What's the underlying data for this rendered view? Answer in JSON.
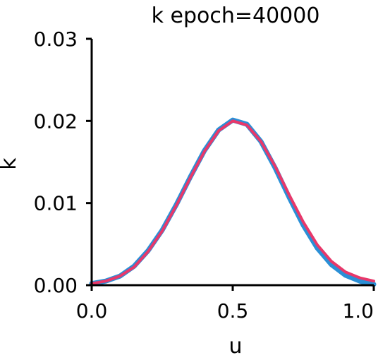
{
  "chart_data": {
    "type": "line",
    "title": "k epoch=40000",
    "xlabel": "u",
    "ylabel": "k",
    "xlim": [
      0.0,
      1.0
    ],
    "ylim": [
      0.0,
      0.03
    ],
    "xticks": [
      "0.0",
      "0.5",
      "1.0"
    ],
    "yticks": [
      "0.00",
      "0.01",
      "0.02",
      "0.03"
    ],
    "grid": false,
    "legend": "none",
    "series": [
      {
        "color": "#2a8fd6",
        "x": [
          0.0,
          0.05,
          0.1,
          0.15,
          0.2,
          0.25,
          0.3,
          0.35,
          0.4,
          0.45,
          0.5,
          0.55,
          0.6,
          0.65,
          0.7,
          0.75,
          0.8,
          0.85,
          0.9,
          0.95,
          1.0
        ],
        "y": [
          0.0002,
          0.0005,
          0.0011,
          0.0023,
          0.0042,
          0.0067,
          0.0098,
          0.0132,
          0.0164,
          0.0189,
          0.0201,
          0.0196,
          0.0175,
          0.0143,
          0.0107,
          0.0073,
          0.0045,
          0.0025,
          0.0012,
          0.0005,
          0.0001
        ]
      },
      {
        "color": "#e8386a",
        "x": [
          0.0,
          0.05,
          0.1,
          0.15,
          0.2,
          0.25,
          0.3,
          0.35,
          0.4,
          0.45,
          0.5,
          0.55,
          0.6,
          0.65,
          0.7,
          0.75,
          0.8,
          0.85,
          0.9,
          0.95,
          1.0
        ],
        "y": [
          0.0002,
          0.0005,
          0.0011,
          0.0022,
          0.0041,
          0.0066,
          0.0097,
          0.0131,
          0.0163,
          0.0188,
          0.02,
          0.0195,
          0.0175,
          0.0145,
          0.011,
          0.0077,
          0.0049,
          0.0029,
          0.0016,
          0.0009,
          0.0005
        ]
      }
    ]
  }
}
